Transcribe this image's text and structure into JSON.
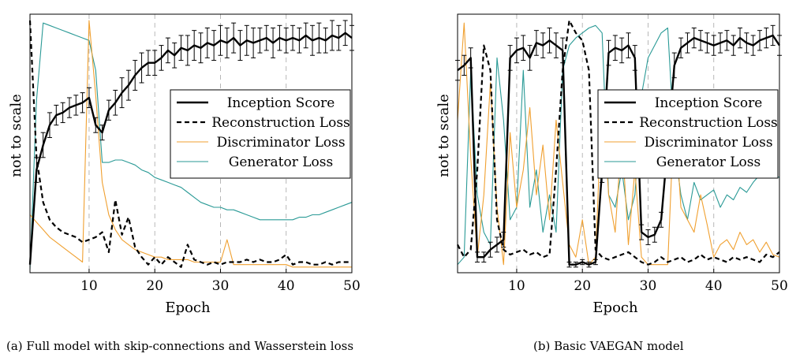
{
  "captions": {
    "a": "(a) Full model with skip-connections and Wasserstein loss",
    "b": "(b) Basic VAEGAN model"
  },
  "colors": {
    "inception": "#000000",
    "reconstruction": "#000000",
    "discriminator": "#f0a030",
    "generator": "#2a9a96",
    "grid": "#b0b0b0"
  },
  "chart_data": [
    {
      "type": "line",
      "caption": "(a) Full model with skip-connections and Wasserstein loss",
      "xlabel": "Epoch",
      "ylabel": "not to scale",
      "xlim": [
        1,
        50
      ],
      "ylim": [
        0,
        1
      ],
      "xticks": [
        10,
        20,
        30,
        40,
        50
      ],
      "grid": "vertical dashed",
      "legend_position": "center-right",
      "series": [
        {
          "name": "Inception Score",
          "style": "solid-thick",
          "errorbars": true,
          "x": [
            1,
            2,
            3,
            4,
            5,
            6,
            7,
            8,
            9,
            10,
            11,
            12,
            13,
            14,
            15,
            16,
            17,
            18,
            19,
            20,
            21,
            22,
            23,
            24,
            25,
            26,
            27,
            28,
            29,
            30,
            31,
            32,
            33,
            34,
            35,
            36,
            37,
            38,
            39,
            40,
            41,
            42,
            43,
            44,
            45,
            46,
            47,
            48,
            49,
            50
          ],
          "values": [
            0.02,
            0.4,
            0.5,
            0.58,
            0.62,
            0.63,
            0.65,
            0.66,
            0.67,
            0.69,
            0.58,
            0.55,
            0.64,
            0.67,
            0.71,
            0.74,
            0.78,
            0.81,
            0.83,
            0.83,
            0.85,
            0.88,
            0.86,
            0.89,
            0.88,
            0.9,
            0.89,
            0.91,
            0.9,
            0.92,
            0.91,
            0.93,
            0.9,
            0.92,
            0.91,
            0.92,
            0.93,
            0.91,
            0.93,
            0.92,
            0.93,
            0.92,
            0.94,
            0.92,
            0.93,
            0.92,
            0.94,
            0.93,
            0.95,
            0.93
          ],
          "errors": [
            0.0,
            0.05,
            0.05,
            0.05,
            0.04,
            0.04,
            0.04,
            0.04,
            0.04,
            0.04,
            0.03,
            0.03,
            0.04,
            0.05,
            0.06,
            0.06,
            0.06,
            0.06,
            0.05,
            0.05,
            0.05,
            0.05,
            0.05,
            0.05,
            0.06,
            0.06,
            0.06,
            0.06,
            0.06,
            0.06,
            0.06,
            0.06,
            0.06,
            0.06,
            0.06,
            0.05,
            0.05,
            0.06,
            0.05,
            0.05,
            0.05,
            0.05,
            0.05,
            0.06,
            0.06,
            0.05,
            0.06,
            0.05,
            0.05,
            0.05
          ]
        },
        {
          "name": "Reconstruction Loss",
          "style": "dashed",
          "x": [
            1,
            2,
            3,
            4,
            5,
            6,
            7,
            8,
            9,
            10,
            11,
            12,
            13,
            14,
            15,
            16,
            17,
            18,
            19,
            20,
            21,
            22,
            23,
            24,
            25,
            26,
            27,
            28,
            29,
            30,
            31,
            32,
            33,
            34,
            35,
            36,
            37,
            38,
            39,
            40,
            41,
            42,
            43,
            44,
            45,
            46,
            47,
            48,
            49,
            50
          ],
          "values": [
            1.0,
            0.45,
            0.27,
            0.2,
            0.17,
            0.15,
            0.14,
            0.13,
            0.11,
            0.12,
            0.13,
            0.15,
            0.07,
            0.28,
            0.14,
            0.21,
            0.09,
            0.05,
            0.02,
            0.05,
            0.02,
            0.05,
            0.03,
            0.01,
            0.1,
            0.04,
            0.03,
            0.02,
            0.03,
            0.02,
            0.03,
            0.03,
            0.03,
            0.04,
            0.03,
            0.04,
            0.03,
            0.03,
            0.04,
            0.06,
            0.02,
            0.03,
            0.03,
            0.02,
            0.02,
            0.03,
            0.02,
            0.03,
            0.03,
            0.03
          ]
        },
        {
          "name": "Discriminator Loss",
          "style": "solid-thin",
          "x": [
            1,
            2,
            3,
            4,
            5,
            6,
            7,
            8,
            9,
            10,
            11,
            12,
            13,
            14,
            15,
            16,
            17,
            18,
            19,
            20,
            21,
            22,
            23,
            24,
            25,
            26,
            27,
            28,
            29,
            30,
            31,
            32,
            33,
            34,
            35,
            36,
            37,
            38,
            39,
            40,
            41,
            42,
            43,
            44,
            45,
            46,
            47,
            48,
            49,
            50
          ],
          "values": [
            0.22,
            0.19,
            0.16,
            0.13,
            0.11,
            0.09,
            0.07,
            0.05,
            0.03,
            1.0,
            0.7,
            0.35,
            0.22,
            0.16,
            0.12,
            0.1,
            0.08,
            0.07,
            0.06,
            0.05,
            0.05,
            0.04,
            0.04,
            0.04,
            0.04,
            0.03,
            0.03,
            0.03,
            0.03,
            0.03,
            0.12,
            0.02,
            0.02,
            0.02,
            0.02,
            0.02,
            0.02,
            0.02,
            0.02,
            0.02,
            0.01,
            0.01,
            0.01,
            0.01,
            0.01,
            0.01,
            0.01,
            0.01,
            0.01,
            0.01
          ]
        },
        {
          "name": "Generator Loss",
          "style": "solid-thin",
          "x": [
            1,
            2,
            3,
            4,
            5,
            6,
            7,
            8,
            9,
            10,
            11,
            12,
            13,
            14,
            15,
            16,
            17,
            18,
            19,
            20,
            21,
            22,
            23,
            24,
            25,
            26,
            27,
            28,
            29,
            30,
            31,
            32,
            33,
            34,
            35,
            36,
            37,
            38,
            39,
            40,
            41,
            42,
            43,
            44,
            45,
            46,
            47,
            48,
            49,
            50
          ],
          "values": [
            0.0,
            0.68,
            0.99,
            0.98,
            0.97,
            0.96,
            0.95,
            0.94,
            0.93,
            0.92,
            0.8,
            0.43,
            0.43,
            0.44,
            0.44,
            0.43,
            0.42,
            0.4,
            0.39,
            0.37,
            0.36,
            0.35,
            0.34,
            0.33,
            0.31,
            0.29,
            0.27,
            0.26,
            0.25,
            0.25,
            0.24,
            0.24,
            0.23,
            0.22,
            0.21,
            0.2,
            0.2,
            0.2,
            0.2,
            0.2,
            0.2,
            0.21,
            0.21,
            0.22,
            0.22,
            0.23,
            0.24,
            0.25,
            0.26,
            0.27
          ]
        }
      ]
    },
    {
      "type": "line",
      "caption": "(b) Basic VAEGAN model",
      "xlabel": "Epoch",
      "ylabel": "not to scale",
      "xlim": [
        1,
        50
      ],
      "ylim": [
        0,
        1
      ],
      "xticks": [
        10,
        20,
        30,
        40,
        50
      ],
      "grid": "vertical dashed",
      "legend_position": "center-right",
      "series": [
        {
          "name": "Inception Score",
          "style": "solid-thick",
          "errorbars": true,
          "x": [
            1,
            2,
            3,
            4,
            5,
            6,
            7,
            8,
            9,
            10,
            11,
            12,
            13,
            14,
            15,
            16,
            17,
            18,
            19,
            20,
            21,
            22,
            23,
            24,
            25,
            26,
            27,
            28,
            29,
            30,
            31,
            32,
            33,
            34,
            35,
            36,
            37,
            38,
            39,
            40,
            41,
            42,
            43,
            44,
            45,
            46,
            47,
            48,
            49,
            50
          ],
          "values": [
            0.8,
            0.82,
            0.85,
            0.05,
            0.05,
            0.08,
            0.1,
            0.12,
            0.85,
            0.88,
            0.89,
            0.85,
            0.91,
            0.9,
            0.92,
            0.9,
            0.88,
            0.02,
            0.02,
            0.03,
            0.02,
            0.03,
            0.4,
            0.87,
            0.89,
            0.88,
            0.9,
            0.85,
            0.15,
            0.13,
            0.14,
            0.2,
            0.5,
            0.82,
            0.89,
            0.91,
            0.93,
            0.92,
            0.91,
            0.9,
            0.91,
            0.92,
            0.9,
            0.93,
            0.91,
            0.9,
            0.92,
            0.93,
            0.94,
            0.9
          ],
          "errors": [
            0.04,
            0.04,
            0.04,
            0.02,
            0.02,
            0.03,
            0.03,
            0.03,
            0.05,
            0.05,
            0.05,
            0.05,
            0.05,
            0.05,
            0.05,
            0.05,
            0.05,
            0.01,
            0.01,
            0.01,
            0.01,
            0.01,
            0.05,
            0.05,
            0.05,
            0.05,
            0.05,
            0.05,
            0.03,
            0.03,
            0.03,
            0.03,
            0.05,
            0.05,
            0.04,
            0.04,
            0.04,
            0.04,
            0.04,
            0.04,
            0.04,
            0.04,
            0.04,
            0.04,
            0.04,
            0.04,
            0.04,
            0.04,
            0.04,
            0.04
          ]
        },
        {
          "name": "Reconstruction Loss",
          "style": "dashed",
          "x": [
            1,
            2,
            3,
            4,
            5,
            6,
            7,
            8,
            9,
            10,
            11,
            12,
            13,
            14,
            15,
            16,
            17,
            18,
            19,
            20,
            21,
            22,
            23,
            24,
            25,
            26,
            27,
            28,
            29,
            30,
            31,
            32,
            33,
            34,
            35,
            36,
            37,
            38,
            39,
            40,
            41,
            42,
            43,
            44,
            45,
            46,
            47,
            48,
            49,
            50
          ],
          "values": [
            0.1,
            0.05,
            0.08,
            0.4,
            0.9,
            0.8,
            0.2,
            0.08,
            0.06,
            0.07,
            0.08,
            0.06,
            0.07,
            0.05,
            0.06,
            0.4,
            0.8,
            1.0,
            0.95,
            0.92,
            0.8,
            0.08,
            0.05,
            0.04,
            0.05,
            0.06,
            0.07,
            0.05,
            0.03,
            0.02,
            0.03,
            0.05,
            0.03,
            0.04,
            0.05,
            0.03,
            0.04,
            0.06,
            0.04,
            0.05,
            0.04,
            0.03,
            0.05,
            0.04,
            0.05,
            0.04,
            0.03,
            0.06,
            0.05,
            0.07
          ]
        },
        {
          "name": "Discriminator Loss",
          "style": "solid-thin",
          "x": [
            1,
            2,
            3,
            4,
            5,
            6,
            7,
            8,
            9,
            10,
            11,
            12,
            13,
            14,
            15,
            16,
            17,
            18,
            19,
            20,
            21,
            22,
            23,
            24,
            25,
            26,
            27,
            28,
            29,
            30,
            31,
            32,
            33,
            34,
            35,
            36,
            37,
            38,
            39,
            40,
            41,
            42,
            43,
            44,
            45,
            46,
            47,
            48,
            49,
            50
          ],
          "values": [
            0.6,
            0.99,
            0.45,
            0.05,
            0.3,
            0.75,
            0.25,
            0.02,
            0.55,
            0.25,
            0.4,
            0.65,
            0.3,
            0.5,
            0.2,
            0.6,
            0.35,
            0.1,
            0.05,
            0.2,
            0.02,
            0.05,
            0.7,
            0.3,
            0.15,
            0.55,
            0.1,
            0.4,
            0.05,
            0.02,
            0.02,
            0.02,
            0.02,
            0.65,
            0.25,
            0.2,
            0.15,
            0.3,
            0.18,
            0.05,
            0.1,
            0.12,
            0.08,
            0.15,
            0.1,
            0.12,
            0.07,
            0.11,
            0.06,
            0.05
          ]
        },
        {
          "name": "Generator Loss",
          "style": "solid-thin",
          "x": [
            1,
            2,
            3,
            4,
            5,
            6,
            7,
            8,
            9,
            10,
            11,
            12,
            13,
            14,
            15,
            16,
            17,
            18,
            19,
            20,
            21,
            22,
            23,
            24,
            25,
            26,
            27,
            28,
            29,
            30,
            31,
            32,
            33,
            34,
            35,
            36,
            37,
            38,
            39,
            40,
            41,
            42,
            43,
            44,
            45,
            46,
            47,
            48,
            49,
            50
          ],
          "values": [
            0.02,
            0.05,
            0.8,
            0.3,
            0.15,
            0.1,
            0.85,
            0.6,
            0.2,
            0.25,
            0.8,
            0.25,
            0.4,
            0.15,
            0.3,
            0.15,
            0.8,
            0.9,
            0.93,
            0.95,
            0.97,
            0.98,
            0.95,
            0.3,
            0.25,
            0.4,
            0.2,
            0.3,
            0.7,
            0.85,
            0.9,
            0.95,
            0.97,
            0.5,
            0.3,
            0.2,
            0.35,
            0.28,
            0.3,
            0.32,
            0.25,
            0.3,
            0.28,
            0.33,
            0.31,
            0.35,
            0.38,
            0.37,
            0.38,
            0.37
          ]
        }
      ]
    }
  ]
}
